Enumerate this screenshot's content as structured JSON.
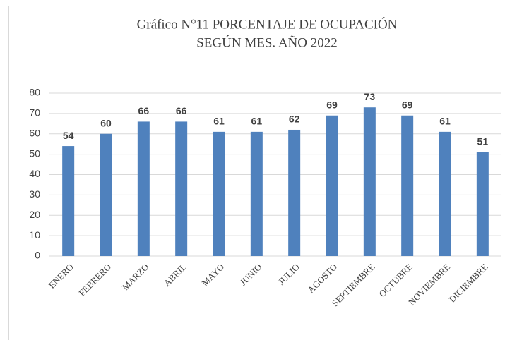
{
  "chart_data": {
    "type": "bar",
    "title": [
      "Gráfico N°11  PORCENTAJE DE OCUPACIÓN",
      "SEGÚN MES. AÑO 2022"
    ],
    "categories": [
      "ENERO",
      "FEBRERO",
      "MARZO",
      "ABRIL",
      "MAYO",
      "JUNIO",
      "JULIO",
      "AGOSTO",
      "SEPTIEMBRE",
      "OCTUBRE",
      "NOVIEMBRE",
      "DICIEMBRE"
    ],
    "values": [
      54,
      60,
      66,
      66,
      61,
      61,
      62,
      69,
      73,
      69,
      61,
      51
    ],
    "color": "#4f81bd",
    "ylim": [
      0,
      80
    ],
    "yticks": [
      0,
      10,
      20,
      30,
      40,
      50,
      60,
      70,
      80
    ],
    "grid": true
  }
}
